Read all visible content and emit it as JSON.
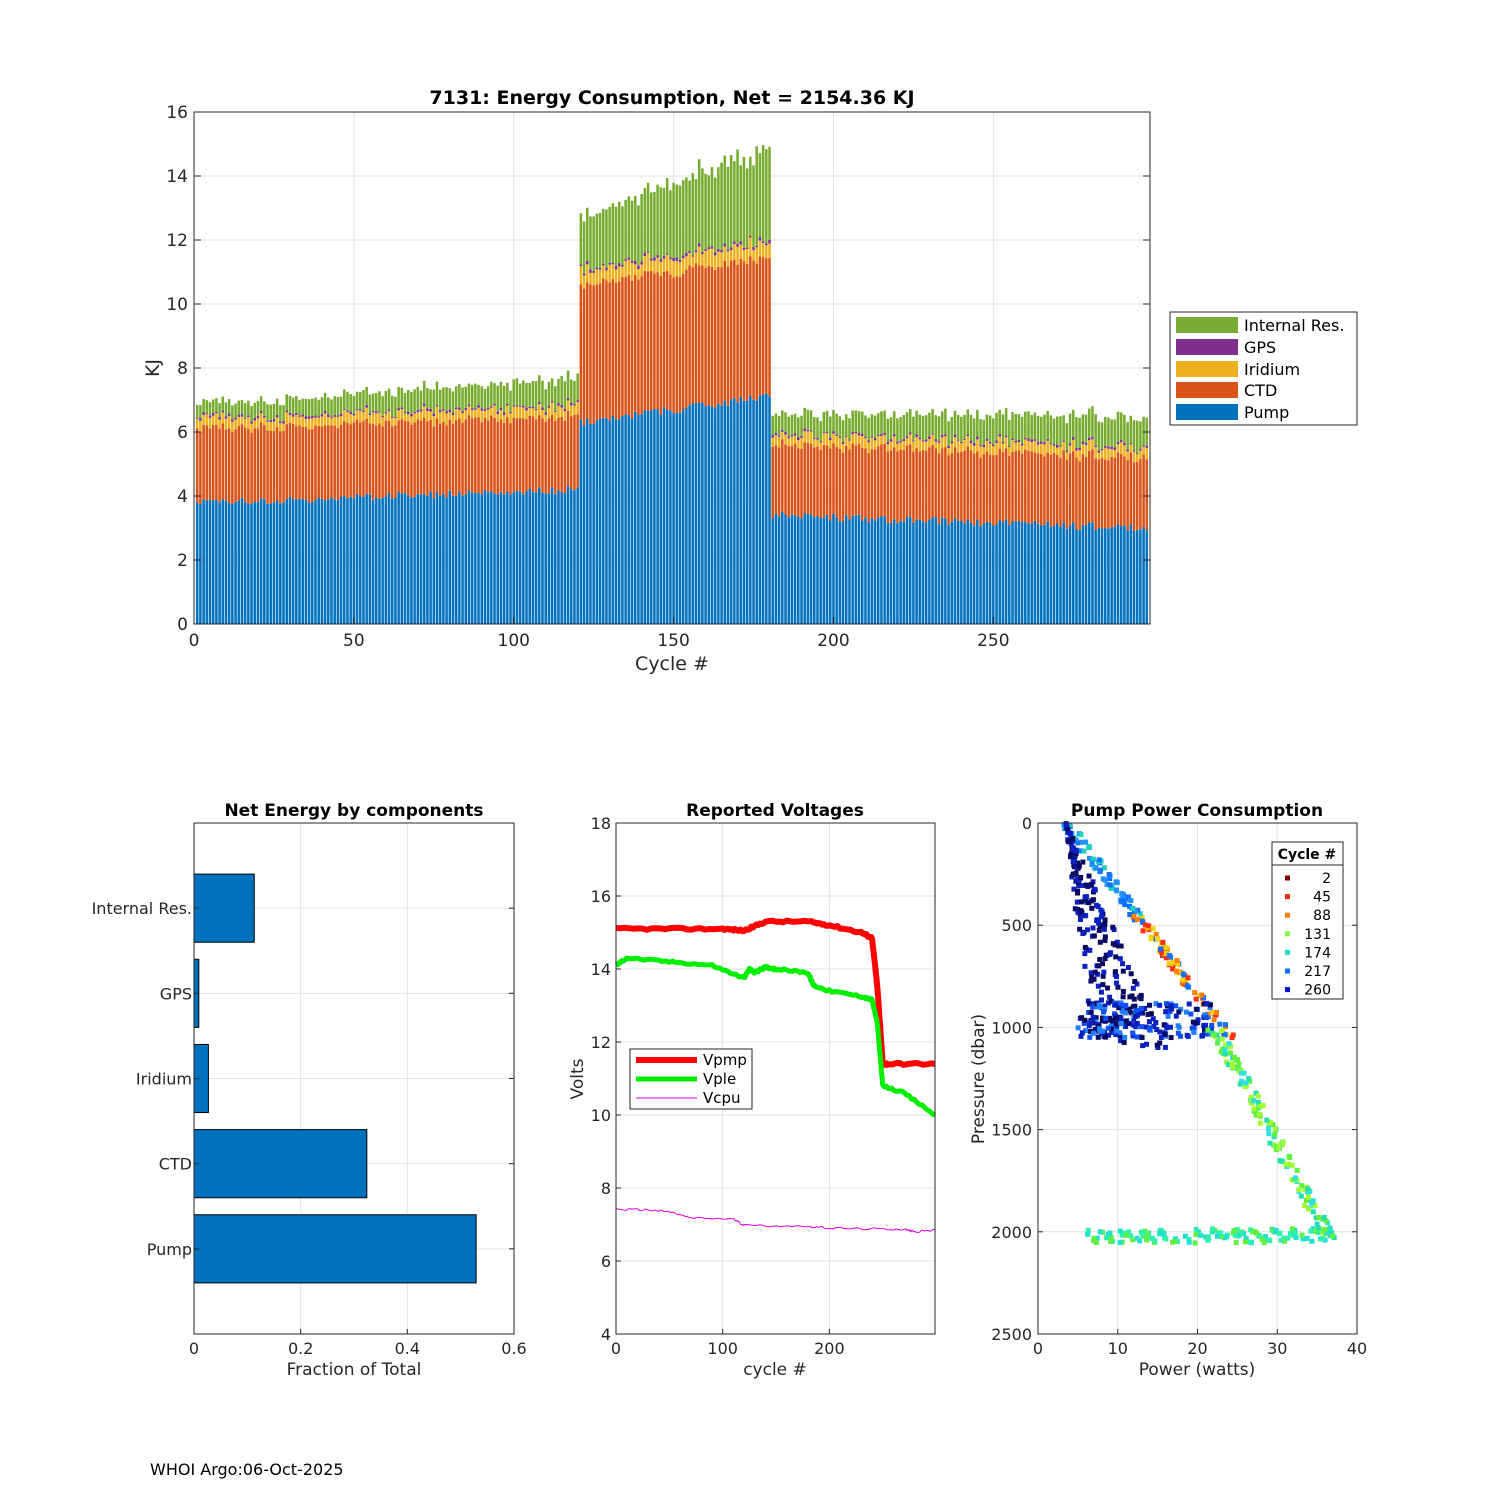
{
  "footer": "WHOI Argo:06-Oct-2025",
  "colors": {
    "pump": "#0072BD",
    "ctd": "#D95319",
    "iridium": "#EDB120",
    "gps": "#7E2F8E",
    "internal": "#77AC30",
    "vpmp": "#ff0000",
    "vple": "#00ee00",
    "vcpu": "#dd00dd"
  },
  "chart_data": [
    {
      "id": "energy",
      "type": "bar",
      "stacked": true,
      "title": "7131: Energy Consumption,  Net = 2154.36 KJ",
      "xlabel": "Cycle #",
      "ylabel": "KJ",
      "xlim": [
        0,
        299
      ],
      "ylim": [
        0,
        16
      ],
      "xticks": [
        0,
        50,
        100,
        150,
        200,
        250
      ],
      "yticks": [
        0,
        2,
        4,
        6,
        8,
        10,
        12,
        14,
        16
      ],
      "grid": true,
      "legend_position": "outside-right",
      "legend": [
        "Internal Res.",
        "GPS",
        "Iridium",
        "CTD",
        "Pump"
      ],
      "segments": [
        {
          "from": 1,
          "to": 120,
          "pump": [
            3.8,
            4.2
          ],
          "ctd": 2.3,
          "iridium": 0.3,
          "gps": 0.06,
          "internal": [
            0.4,
            0.9
          ]
        },
        {
          "from": 121,
          "to": 180,
          "pump": [
            6.3,
            7.1
          ],
          "ctd": 4.3,
          "iridium": 0.45,
          "gps": 0.08,
          "internal": [
            1.6,
            3.1
          ]
        },
        {
          "from": 181,
          "to": 298,
          "pump": [
            3.4,
            3.0
          ],
          "ctd": 2.2,
          "iridium": 0.3,
          "gps": 0.06,
          "internal": [
            0.6,
            1.0
          ]
        }
      ]
    },
    {
      "id": "components",
      "type": "bar",
      "orientation": "horizontal",
      "title": "Net Energy by components",
      "xlabel": "Fraction of Total",
      "xlim": [
        0,
        0.6
      ],
      "xticks": [
        0,
        0.2,
        0.4,
        0.6
      ],
      "xtick_labels": [
        "0",
        "0.2",
        "0.4",
        "0.6"
      ],
      "categories": [
        "Internal Res.",
        "GPS",
        "Iridium",
        "CTD",
        "Pump"
      ],
      "values": [
        0.113,
        0.009,
        0.027,
        0.324,
        0.529
      ],
      "grid": true
    },
    {
      "id": "voltages",
      "type": "line",
      "title": "Reported Voltages",
      "xlabel": "cycle #",
      "ylabel": "Volts",
      "xlim": [
        0,
        299
      ],
      "ylim": [
        4,
        18
      ],
      "xticks": [
        0,
        100,
        200
      ],
      "yticks": [
        4,
        6,
        8,
        10,
        12,
        14,
        16,
        18
      ],
      "grid": true,
      "legend_position": "center-left",
      "series": [
        {
          "name": "Vpmp",
          "x": [
            0,
            50,
            100,
            120,
            140,
            180,
            200,
            230,
            240,
            245,
            250,
            255,
            299
          ],
          "y": [
            15.1,
            15.1,
            15.1,
            15.05,
            15.3,
            15.3,
            15.2,
            15.0,
            14.85,
            13.5,
            11.4,
            11.4,
            11.4
          ]
        },
        {
          "name": "Vple",
          "x": [
            0,
            10,
            50,
            90,
            120,
            125,
            130,
            140,
            150,
            180,
            185,
            200,
            230,
            240,
            245,
            250,
            270,
            299
          ],
          "y": [
            14.1,
            14.3,
            14.2,
            14.1,
            13.75,
            14.0,
            13.9,
            14.05,
            14.0,
            13.9,
            13.55,
            13.4,
            13.25,
            13.15,
            12.5,
            10.8,
            10.6,
            10.0
          ]
        },
        {
          "name": "Vcpu",
          "x": [
            0,
            30,
            50,
            70,
            110,
            120,
            180,
            200,
            240,
            270,
            280,
            299
          ],
          "y": [
            7.42,
            7.4,
            7.35,
            7.18,
            7.15,
            6.98,
            6.95,
            6.9,
            6.88,
            6.87,
            6.8,
            6.85
          ]
        }
      ]
    },
    {
      "id": "pump_power",
      "type": "scatter",
      "title": "Pump Power Consumption",
      "xlabel": "Power (watts)",
      "ylabel": "Pressure (dbar)",
      "xlim": [
        0,
        40
      ],
      "ylim": [
        0,
        2500
      ],
      "y_reversed": true,
      "xticks": [
        0,
        10,
        20,
        30,
        40
      ],
      "yticks": [
        0,
        500,
        1000,
        1500,
        2000,
        2500
      ],
      "grid": true,
      "legend_title": "Cycle #",
      "legend_position": "top-right",
      "series": [
        {
          "name": "2",
          "color": "#800000"
        },
        {
          "name": "45",
          "color": "#ff2000"
        },
        {
          "name": "88",
          "color": "#ff8000"
        },
        {
          "name": "131",
          "color": "#80ff40"
        },
        {
          "name": "174",
          "color": "#20e0c0"
        },
        {
          "name": "217",
          "color": "#1070ff"
        },
        {
          "name": "260",
          "color": "#0010e0"
        }
      ],
      "clusters": [
        {
          "series": "260",
          "color": "#0a0a60",
          "power": [
            4,
            16
          ],
          "pressure": [
            0,
            1100
          ]
        },
        {
          "series": "217",
          "color": "#1050f0",
          "power": [
            4,
            24
          ],
          "pressure": [
            0,
            1100
          ]
        },
        {
          "series": "45",
          "color": "#ff3010",
          "power": [
            13,
            25
          ],
          "pressure": [
            400,
            1030
          ]
        },
        {
          "series": "131",
          "color": "#60f040",
          "power": [
            20,
            37
          ],
          "pressure": [
            1000,
            2050
          ]
        },
        {
          "series": "174",
          "color": "#20e0d0",
          "power": [
            6,
            37
          ],
          "pressure": [
            1900,
            2060
          ]
        }
      ]
    }
  ]
}
